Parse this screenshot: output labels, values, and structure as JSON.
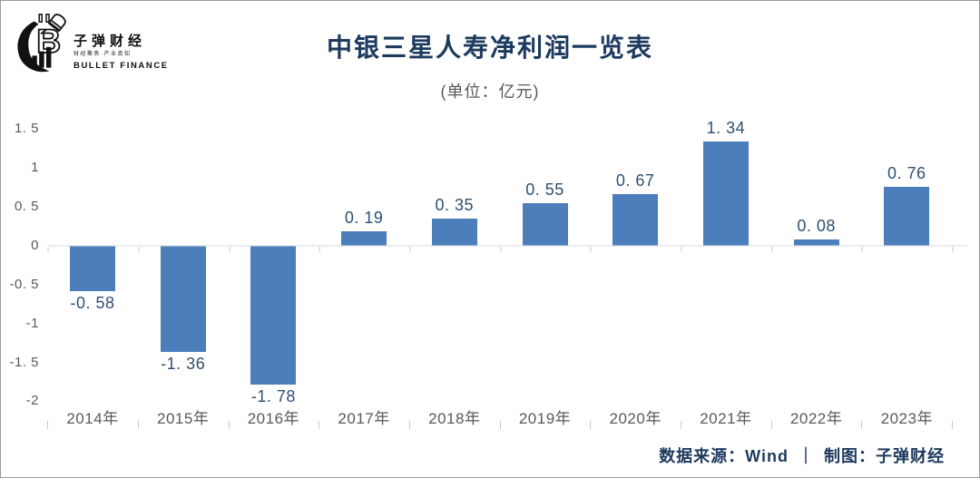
{
  "logo": {
    "brand": "子弹财经",
    "tagline": "财经聚焦·产业真知",
    "brand_en": "BULLET FINANCE"
  },
  "header": {
    "title": "中银三星人寿净利润一览表",
    "subtitle": "(单位：亿元)"
  },
  "footer": {
    "source_label": "数据来源：Wind",
    "separator": "｜",
    "credit_label": "制图：子弹财经"
  },
  "colors": {
    "bar": "#4d7ebc",
    "title_text": "#1d3a5f",
    "value_label_text": "#2f4f70",
    "axis_text": "#595959",
    "axis_line": "#e4e4e8"
  },
  "chart_data": {
    "type": "bar",
    "title": "中银三星人寿净利润一览表",
    "unit": "亿元",
    "categories": [
      "2014年",
      "2015年",
      "2016年",
      "2017年",
      "2018年",
      "2019年",
      "2020年",
      "2021年",
      "2022年",
      "2023年"
    ],
    "values": [
      -0.58,
      -1.36,
      -1.78,
      0.19,
      0.35,
      0.55,
      0.67,
      1.34,
      0.08,
      0.76
    ],
    "value_labels": [
      "-0. 58",
      "-1. 36",
      "-1. 78",
      "0. 19",
      "0. 35",
      "0. 55",
      "0. 67",
      "1. 34",
      "0. 08",
      "0. 76"
    ],
    "xlabel": "",
    "ylabel": "",
    "ylim": [
      -2,
      1.5
    ],
    "y_ticks": [
      1.5,
      1,
      0.5,
      0,
      -0.5,
      -1,
      -1.5,
      -2
    ],
    "y_tick_labels": [
      "1. 5",
      "1",
      "0. 5",
      "0",
      "-0. 5",
      "-1",
      "-1. 5",
      "-2"
    ],
    "grid": false,
    "legend": false,
    "bar_color": "#4d7ebc"
  }
}
